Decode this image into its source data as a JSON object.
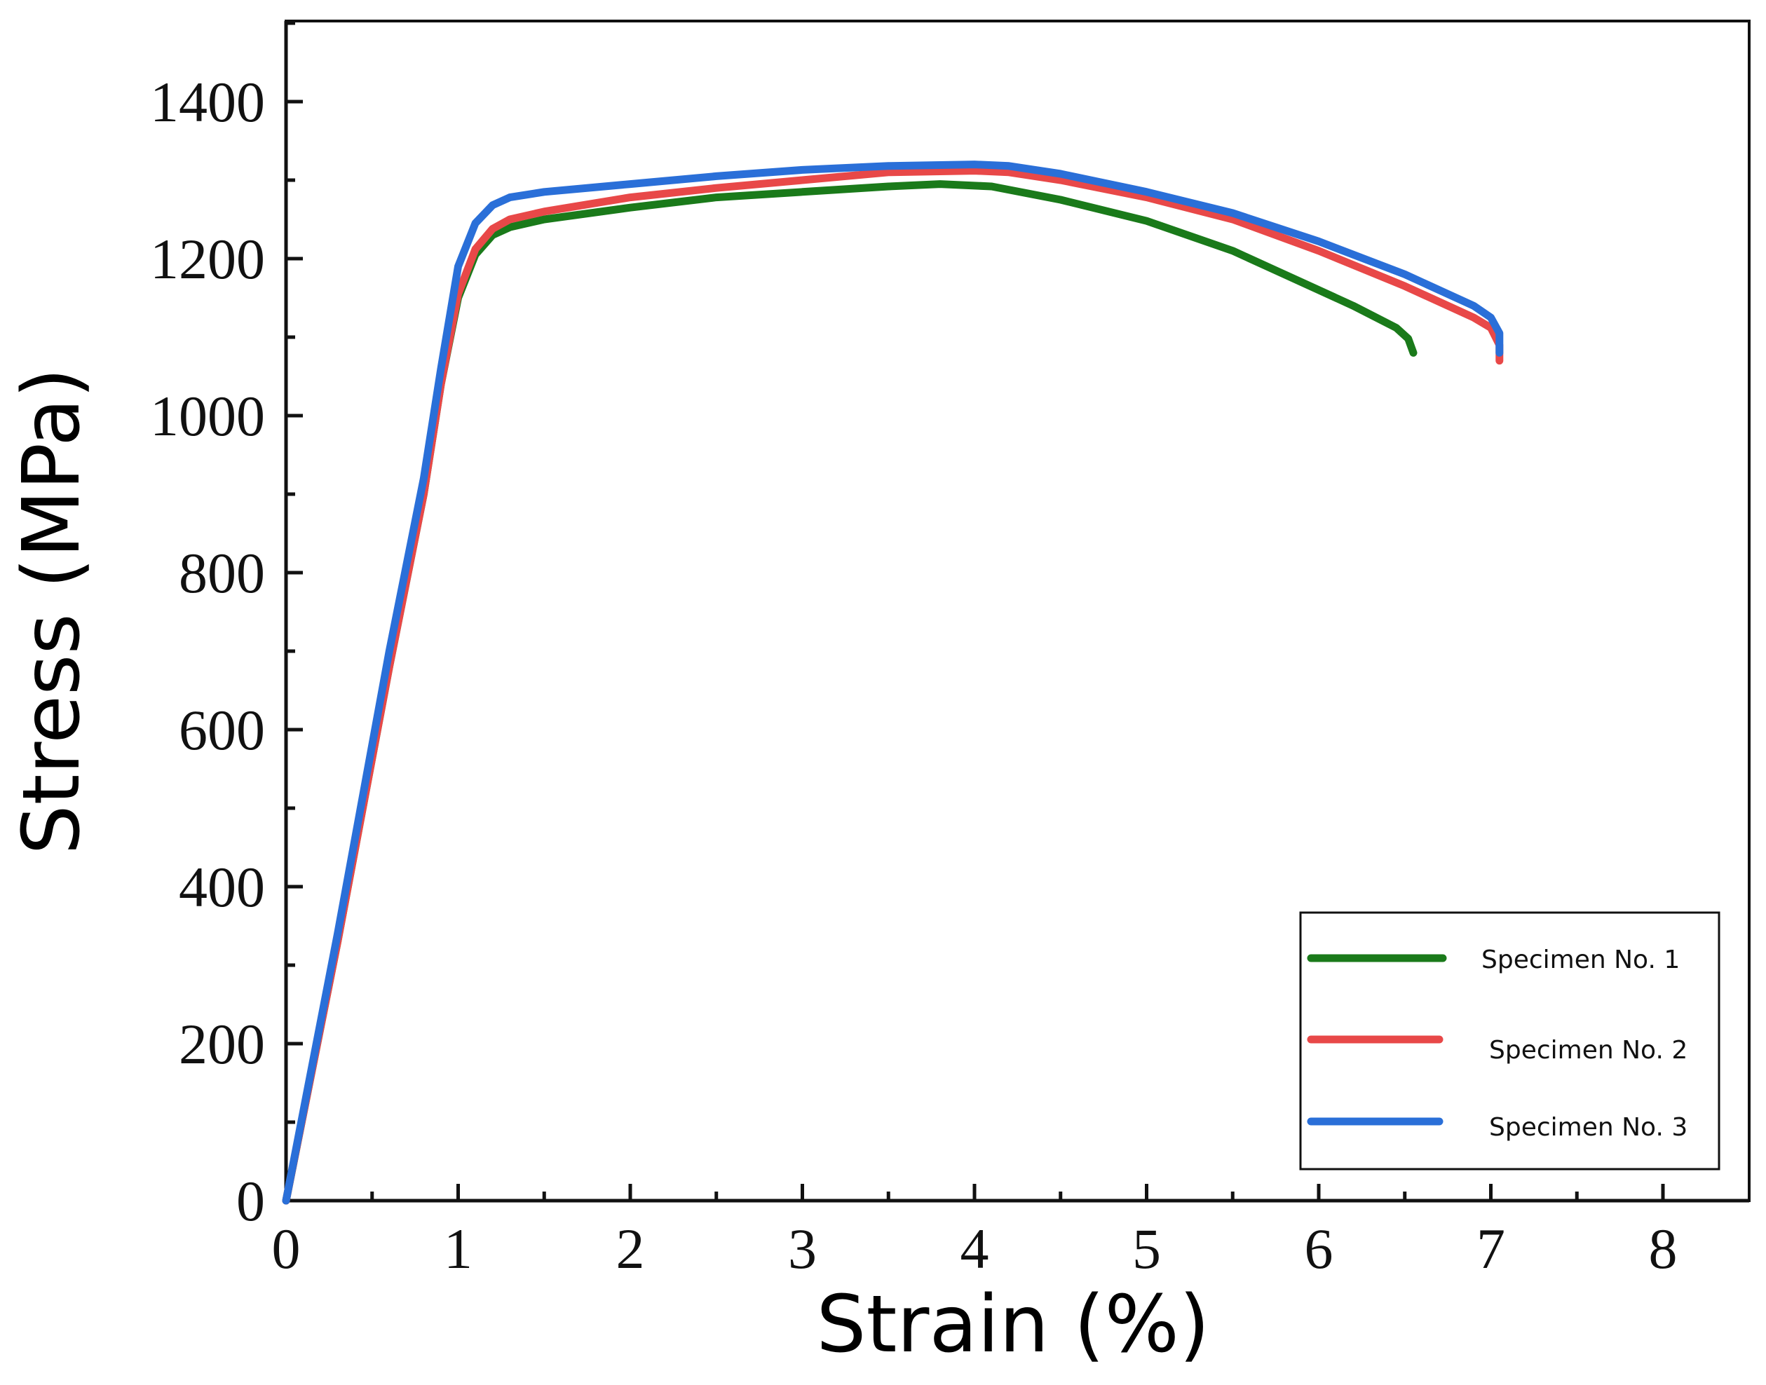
{
  "chart_data": {
    "type": "line",
    "title": "",
    "xlabel": "Strain (%)",
    "ylabel": "Stress (MPa)",
    "xlim": [
      0,
      8.5
    ],
    "ylim": [
      0,
      1500
    ],
    "xticks": [
      0,
      1,
      2,
      3,
      4,
      5,
      6,
      7,
      8
    ],
    "xtick_labels": [
      "0",
      "1",
      "2",
      "3",
      "4",
      "5",
      "6",
      "7",
      "8"
    ],
    "yticks": [
      0,
      200,
      400,
      600,
      800,
      1000,
      1200,
      1400
    ],
    "ytick_labels": [
      "0",
      "200",
      "400",
      "600",
      "800",
      "1000",
      "1200",
      "1400"
    ],
    "grid": false,
    "legend_position": "bottom-right",
    "series": [
      {
        "name": "Specimen No. 1",
        "color": "#1a7a1a",
        "x": [
          0,
          0.3,
          0.6,
          0.8,
          0.9,
          1.0,
          1.1,
          1.2,
          1.3,
          1.5,
          2.0,
          2.5,
          3.0,
          3.5,
          3.8,
          4.1,
          4.5,
          5.0,
          5.5,
          5.8,
          6.2,
          6.45,
          6.52,
          6.55
        ],
        "y": [
          0,
          330,
          680,
          900,
          1040,
          1150,
          1205,
          1230,
          1240,
          1250,
          1265,
          1278,
          1285,
          1292,
          1295,
          1292,
          1275,
          1248,
          1210,
          1180,
          1140,
          1112,
          1098,
          1080
        ]
      },
      {
        "name": "Specimen No. 2",
        "color": "#e84848",
        "x": [
          0,
          0.3,
          0.6,
          0.8,
          0.9,
          1.0,
          1.1,
          1.2,
          1.3,
          1.5,
          2.0,
          2.5,
          3.0,
          3.5,
          4.0,
          4.2,
          4.5,
          5.0,
          5.5,
          6.0,
          6.5,
          6.9,
          7.0,
          7.05,
          7.05
        ],
        "y": [
          0,
          330,
          680,
          900,
          1040,
          1155,
          1212,
          1238,
          1250,
          1260,
          1278,
          1290,
          1300,
          1310,
          1312,
          1310,
          1300,
          1278,
          1250,
          1210,
          1165,
          1125,
          1112,
          1090,
          1070
        ]
      },
      {
        "name": "Specimen No. 3",
        "color": "#2a6fd8",
        "x": [
          0,
          0.3,
          0.6,
          0.8,
          0.9,
          1.0,
          1.1,
          1.2,
          1.3,
          1.5,
          2.0,
          2.5,
          3.0,
          3.5,
          4.0,
          4.2,
          4.5,
          5.0,
          5.5,
          6.0,
          6.5,
          6.9,
          7.0,
          7.05,
          7.05
        ],
        "y": [
          0,
          340,
          700,
          920,
          1060,
          1190,
          1245,
          1268,
          1278,
          1285,
          1295,
          1305,
          1313,
          1318,
          1320,
          1318,
          1308,
          1285,
          1258,
          1222,
          1180,
          1140,
          1125,
          1105,
          1080
        ]
      }
    ]
  }
}
